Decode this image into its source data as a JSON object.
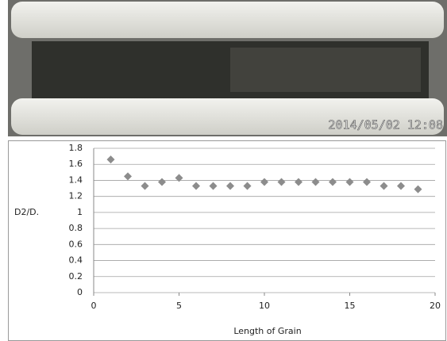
{
  "photo": {
    "timestamp": "2014/05/02 12:08"
  },
  "chart_data": {
    "type": "scatter",
    "x": [
      1,
      2,
      3,
      4,
      5,
      6,
      7,
      8,
      9,
      10,
      11,
      12,
      13,
      14,
      15,
      16,
      17,
      18,
      19
    ],
    "values": [
      1.66,
      1.45,
      1.33,
      1.38,
      1.43,
      1.33,
      1.33,
      1.33,
      1.33,
      1.38,
      1.38,
      1.38,
      1.38,
      1.38,
      1.38,
      1.38,
      1.33,
      1.33,
      1.29
    ],
    "color": "#8c8c8c",
    "xlim": [
      0,
      20
    ],
    "xticks": [
      0,
      5,
      10,
      15,
      20
    ],
    "ylim": [
      0,
      1.8
    ],
    "yticks": [
      0,
      0.2,
      0.4,
      0.6,
      0.8,
      1,
      1.2,
      1.4,
      1.6,
      1.8
    ],
    "grid": true,
    "ylabel": "D2/D.",
    "xlabel": "Length of Grain"
  }
}
